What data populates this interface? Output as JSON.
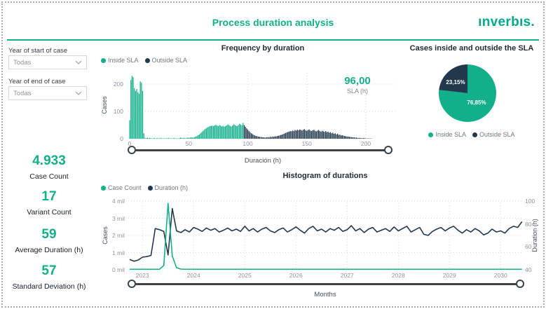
{
  "page": {
    "title": "Process duration analysis",
    "brand": "ınverbıs."
  },
  "colors": {
    "accent": "#12AF8B",
    "dark": "#22384D"
  },
  "filters": {
    "start": {
      "label": "Year of start of case",
      "value": "Todas"
    },
    "end": {
      "label": "Year of end of case",
      "value": "Todas"
    }
  },
  "kpis": [
    {
      "value": "4.933",
      "label": "Case Count"
    },
    {
      "value": "17",
      "label": "Variant Count"
    },
    {
      "value": "59",
      "label": "Average Duration (h)"
    },
    {
      "value": "57",
      "label": "Standard Deviation (h)"
    }
  ],
  "frequency_chart": {
    "title": "Frequency by duration",
    "legend": [
      {
        "label": "Inside SLA"
      },
      {
        "label": "Outside SLA"
      }
    ],
    "y_axis": {
      "label": "Cases",
      "ticks": [
        0,
        100,
        200
      ]
    },
    "x_axis": {
      "label": "Duración (h)",
      "ticks": [
        0,
        50,
        100,
        150,
        200
      ]
    },
    "sla": {
      "value": "96,00",
      "label": "SLA (h)"
    }
  },
  "pie_chart": {
    "title": "Cases inside and outside the SLA",
    "legend": [
      {
        "label": "Inside SLA"
      },
      {
        "label": "Outside SLA"
      }
    ],
    "slices": [
      {
        "label": "Inside SLA",
        "pct": 76.85,
        "display": "76,85%"
      },
      {
        "label": "Outside SLA",
        "pct": 23.15,
        "display": "23,15%"
      }
    ]
  },
  "duration_chart": {
    "title": "Histogram of durations",
    "legend": [
      {
        "label": "Case Count"
      },
      {
        "label": "Duration (h)"
      }
    ],
    "left_axis": {
      "label": "Cases",
      "ticks": [
        "0 mil",
        "1 mil",
        "2 mil",
        "3 mil",
        "4 mil"
      ]
    },
    "right_axis": {
      "label": "Duration (h)",
      "ticks": [
        40,
        60,
        80,
        100
      ]
    },
    "x_axis": {
      "label": "Months",
      "ticks": [
        "2023",
        "2024",
        "2025",
        "2026",
        "2027",
        "2028",
        "2029",
        "2030"
      ]
    }
  },
  "chart_data": [
    {
      "type": "bar",
      "title": "Frequency by duration",
      "xlabel": "Duración (h)",
      "ylabel": "Cases",
      "bin_width": 1,
      "xlim": [
        0,
        225
      ],
      "ylim": [
        0,
        256
      ],
      "x_ticks": [
        0,
        50,
        100,
        150,
        200
      ],
      "y_ticks": [
        0,
        100,
        200
      ],
      "sla_hours": 96,
      "series": [
        {
          "name": "Inside SLA",
          "x_start": 0,
          "values": [
            68,
            215,
            230,
            225,
            185,
            175,
            182,
            170,
            165,
            210,
            205,
            175,
            20,
            3,
            2,
            4,
            2,
            3,
            2,
            1,
            2,
            3,
            1,
            2,
            2,
            1,
            3,
            2,
            1,
            2,
            1,
            2,
            2,
            3,
            1,
            2,
            1,
            2,
            3,
            1,
            2,
            1,
            2,
            4,
            3,
            2,
            3,
            2,
            3,
            4,
            3,
            4,
            5,
            4,
            5,
            6,
            8,
            10,
            13,
            16,
            20,
            24,
            28,
            32,
            36,
            39,
            42,
            44,
            46,
            47,
            48,
            46,
            49,
            51,
            48,
            46,
            50,
            48,
            45,
            47,
            44,
            46,
            49,
            52,
            50,
            47,
            45,
            48,
            53,
            51,
            48,
            46,
            50,
            55,
            52,
            49,
            58
          ]
        },
        {
          "name": "Outside SLA",
          "x_start": 97,
          "values": [
            50,
            44,
            38,
            33,
            28,
            24,
            20,
            17,
            14,
            12,
            10,
            9,
            8,
            7,
            6,
            6,
            5,
            5,
            4,
            5,
            6,
            5,
            7,
            6,
            8,
            7,
            9,
            8,
            10,
            11,
            12,
            14,
            15,
            17,
            19,
            21,
            23,
            25,
            26,
            28,
            27,
            30,
            28,
            32,
            30,
            33,
            31,
            34,
            32,
            30,
            33,
            35,
            31,
            29,
            32,
            34,
            30,
            28,
            31,
            33,
            29,
            27,
            30,
            32,
            28,
            26,
            29,
            27,
            25,
            28,
            24,
            26,
            22,
            24,
            20,
            22,
            18,
            20,
            16,
            18,
            14,
            15,
            12,
            13,
            11,
            10,
            9,
            8,
            8,
            7,
            6,
            6,
            5,
            5,
            4,
            4,
            3,
            3,
            3,
            2,
            2,
            2,
            2,
            1,
            1,
            1,
            1,
            1,
            1
          ]
        }
      ]
    },
    {
      "type": "pie",
      "title": "Cases inside and outside the SLA",
      "labels": [
        "Inside SLA",
        "Outside SLA"
      ],
      "values": [
        76.85,
        23.15
      ]
    },
    {
      "type": "line",
      "title": "Histogram of durations",
      "xlabel": "Months",
      "x_start": "2022-10",
      "x_interval": "month",
      "x_ticks": [
        "2023",
        "2024",
        "2025",
        "2026",
        "2027",
        "2028",
        "2029",
        "2030"
      ],
      "left_ylim_mil": [
        0,
        4
      ],
      "right_ylim_h": [
        40,
        100
      ],
      "series": [
        {
          "name": "Case Count",
          "axis": "left",
          "unit": "mil",
          "values": [
            0.03,
            0.03,
            0.03,
            0.03,
            0.03,
            0.03,
            0.03,
            0.03,
            0.25,
            3.87,
            0.8,
            0.12,
            0.04,
            0.03,
            0.03,
            0.03,
            0.03,
            0.03,
            0.03,
            0.03,
            0.03,
            0.03,
            0.03,
            0.03,
            0.03,
            0.03,
            0.03,
            0.03,
            0.03,
            0.03,
            0.03,
            0.03,
            0.03,
            0.03,
            0.03,
            0.03,
            0.03,
            0.03,
            0.03,
            0.03,
            0.03,
            0.03,
            0.03,
            0.03,
            0.03,
            0.03,
            0.03,
            0.03,
            0.03,
            0.03,
            0.03,
            0.03,
            0.03,
            0.03,
            0.03,
            0.03,
            0.03,
            0.03,
            0.03,
            0.03,
            0.03,
            0.03,
            0.03,
            0.03,
            0.03,
            0.03,
            0.03,
            0.03,
            0.03,
            0.03,
            0.03,
            0.03,
            0.03,
            0.03,
            0.03,
            0.03,
            0.03,
            0.03,
            0.03,
            0.03,
            0.03,
            0.03,
            0.03,
            0.03,
            0.03,
            0.03,
            0.03,
            0.03,
            0.03,
            0.03,
            0.03,
            0.03,
            0.03
          ]
        },
        {
          "name": "Duration (h)",
          "axis": "right",
          "unit": "h",
          "values": [
            49,
            47.5,
            48.5,
            51,
            51.5,
            52.5,
            76,
            75,
            73.5,
            53,
            93.5,
            74,
            72.5,
            75,
            73,
            77,
            75.5,
            73.5,
            76.5,
            74.5,
            76,
            73,
            74.5,
            76.5,
            74,
            75.5,
            73.5,
            78,
            74,
            76,
            73,
            75.5,
            77,
            74,
            72.5,
            75,
            76.5,
            73,
            75,
            77.5,
            74.5,
            72,
            76,
            78,
            74,
            75.5,
            73,
            76,
            74.5,
            77,
            73.5,
            75,
            78.5,
            74,
            76,
            72.5,
            75.5,
            77,
            73,
            74.5,
            76,
            73.5,
            77.5,
            74,
            76,
            78,
            73,
            75,
            77,
            71,
            70,
            73.5,
            75.5,
            77,
            74,
            76.5,
            78,
            74.5,
            72,
            75,
            73,
            76,
            74,
            70.5,
            72,
            75.5,
            73,
            74,
            72,
            76,
            78,
            77,
            82
          ]
        }
      ]
    }
  ]
}
